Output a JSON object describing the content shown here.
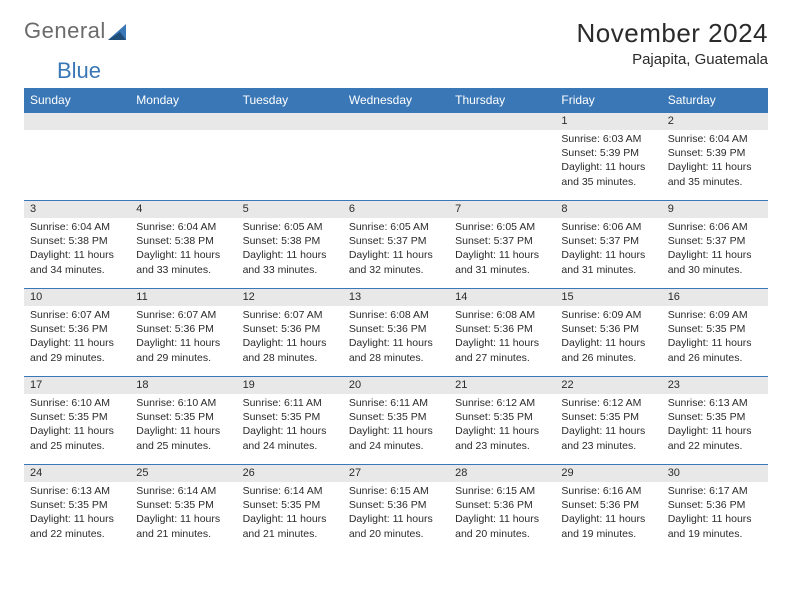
{
  "logo": {
    "text_a": "General",
    "text_b": "Blue"
  },
  "month_title": "November 2024",
  "location": "Pajapita, Guatemala",
  "colors": {
    "header_bg": "#3a77b6",
    "header_fg": "#ffffff",
    "daynum_bg": "#e8e8e8",
    "border": "#3a77b6",
    "text": "#2b2b2b",
    "logo_gray": "#6b6b6b",
    "logo_blue": "#3a77b6",
    "page_bg": "#ffffff"
  },
  "weekday_labels": [
    "Sunday",
    "Monday",
    "Tuesday",
    "Wednesday",
    "Thursday",
    "Friday",
    "Saturday"
  ],
  "weeks": [
    [
      {
        "day": "",
        "sunrise": "",
        "sunset": "",
        "daylight": ""
      },
      {
        "day": "",
        "sunrise": "",
        "sunset": "",
        "daylight": ""
      },
      {
        "day": "",
        "sunrise": "",
        "sunset": "",
        "daylight": ""
      },
      {
        "day": "",
        "sunrise": "",
        "sunset": "",
        "daylight": ""
      },
      {
        "day": "",
        "sunrise": "",
        "sunset": "",
        "daylight": ""
      },
      {
        "day": "1",
        "sunrise": "Sunrise: 6:03 AM",
        "sunset": "Sunset: 5:39 PM",
        "daylight": "Daylight: 11 hours and 35 minutes."
      },
      {
        "day": "2",
        "sunrise": "Sunrise: 6:04 AM",
        "sunset": "Sunset: 5:39 PM",
        "daylight": "Daylight: 11 hours and 35 minutes."
      }
    ],
    [
      {
        "day": "3",
        "sunrise": "Sunrise: 6:04 AM",
        "sunset": "Sunset: 5:38 PM",
        "daylight": "Daylight: 11 hours and 34 minutes."
      },
      {
        "day": "4",
        "sunrise": "Sunrise: 6:04 AM",
        "sunset": "Sunset: 5:38 PM",
        "daylight": "Daylight: 11 hours and 33 minutes."
      },
      {
        "day": "5",
        "sunrise": "Sunrise: 6:05 AM",
        "sunset": "Sunset: 5:38 PM",
        "daylight": "Daylight: 11 hours and 33 minutes."
      },
      {
        "day": "6",
        "sunrise": "Sunrise: 6:05 AM",
        "sunset": "Sunset: 5:37 PM",
        "daylight": "Daylight: 11 hours and 32 minutes."
      },
      {
        "day": "7",
        "sunrise": "Sunrise: 6:05 AM",
        "sunset": "Sunset: 5:37 PM",
        "daylight": "Daylight: 11 hours and 31 minutes."
      },
      {
        "day": "8",
        "sunrise": "Sunrise: 6:06 AM",
        "sunset": "Sunset: 5:37 PM",
        "daylight": "Daylight: 11 hours and 31 minutes."
      },
      {
        "day": "9",
        "sunrise": "Sunrise: 6:06 AM",
        "sunset": "Sunset: 5:37 PM",
        "daylight": "Daylight: 11 hours and 30 minutes."
      }
    ],
    [
      {
        "day": "10",
        "sunrise": "Sunrise: 6:07 AM",
        "sunset": "Sunset: 5:36 PM",
        "daylight": "Daylight: 11 hours and 29 minutes."
      },
      {
        "day": "11",
        "sunrise": "Sunrise: 6:07 AM",
        "sunset": "Sunset: 5:36 PM",
        "daylight": "Daylight: 11 hours and 29 minutes."
      },
      {
        "day": "12",
        "sunrise": "Sunrise: 6:07 AM",
        "sunset": "Sunset: 5:36 PM",
        "daylight": "Daylight: 11 hours and 28 minutes."
      },
      {
        "day": "13",
        "sunrise": "Sunrise: 6:08 AM",
        "sunset": "Sunset: 5:36 PM",
        "daylight": "Daylight: 11 hours and 28 minutes."
      },
      {
        "day": "14",
        "sunrise": "Sunrise: 6:08 AM",
        "sunset": "Sunset: 5:36 PM",
        "daylight": "Daylight: 11 hours and 27 minutes."
      },
      {
        "day": "15",
        "sunrise": "Sunrise: 6:09 AM",
        "sunset": "Sunset: 5:36 PM",
        "daylight": "Daylight: 11 hours and 26 minutes."
      },
      {
        "day": "16",
        "sunrise": "Sunrise: 6:09 AM",
        "sunset": "Sunset: 5:35 PM",
        "daylight": "Daylight: 11 hours and 26 minutes."
      }
    ],
    [
      {
        "day": "17",
        "sunrise": "Sunrise: 6:10 AM",
        "sunset": "Sunset: 5:35 PM",
        "daylight": "Daylight: 11 hours and 25 minutes."
      },
      {
        "day": "18",
        "sunrise": "Sunrise: 6:10 AM",
        "sunset": "Sunset: 5:35 PM",
        "daylight": "Daylight: 11 hours and 25 minutes."
      },
      {
        "day": "19",
        "sunrise": "Sunrise: 6:11 AM",
        "sunset": "Sunset: 5:35 PM",
        "daylight": "Daylight: 11 hours and 24 minutes."
      },
      {
        "day": "20",
        "sunrise": "Sunrise: 6:11 AM",
        "sunset": "Sunset: 5:35 PM",
        "daylight": "Daylight: 11 hours and 24 minutes."
      },
      {
        "day": "21",
        "sunrise": "Sunrise: 6:12 AM",
        "sunset": "Sunset: 5:35 PM",
        "daylight": "Daylight: 11 hours and 23 minutes."
      },
      {
        "day": "22",
        "sunrise": "Sunrise: 6:12 AM",
        "sunset": "Sunset: 5:35 PM",
        "daylight": "Daylight: 11 hours and 23 minutes."
      },
      {
        "day": "23",
        "sunrise": "Sunrise: 6:13 AM",
        "sunset": "Sunset: 5:35 PM",
        "daylight": "Daylight: 11 hours and 22 minutes."
      }
    ],
    [
      {
        "day": "24",
        "sunrise": "Sunrise: 6:13 AM",
        "sunset": "Sunset: 5:35 PM",
        "daylight": "Daylight: 11 hours and 22 minutes."
      },
      {
        "day": "25",
        "sunrise": "Sunrise: 6:14 AM",
        "sunset": "Sunset: 5:35 PM",
        "daylight": "Daylight: 11 hours and 21 minutes."
      },
      {
        "day": "26",
        "sunrise": "Sunrise: 6:14 AM",
        "sunset": "Sunset: 5:35 PM",
        "daylight": "Daylight: 11 hours and 21 minutes."
      },
      {
        "day": "27",
        "sunrise": "Sunrise: 6:15 AM",
        "sunset": "Sunset: 5:36 PM",
        "daylight": "Daylight: 11 hours and 20 minutes."
      },
      {
        "day": "28",
        "sunrise": "Sunrise: 6:15 AM",
        "sunset": "Sunset: 5:36 PM",
        "daylight": "Daylight: 11 hours and 20 minutes."
      },
      {
        "day": "29",
        "sunrise": "Sunrise: 6:16 AM",
        "sunset": "Sunset: 5:36 PM",
        "daylight": "Daylight: 11 hours and 19 minutes."
      },
      {
        "day": "30",
        "sunrise": "Sunrise: 6:17 AM",
        "sunset": "Sunset: 5:36 PM",
        "daylight": "Daylight: 11 hours and 19 minutes."
      }
    ]
  ]
}
